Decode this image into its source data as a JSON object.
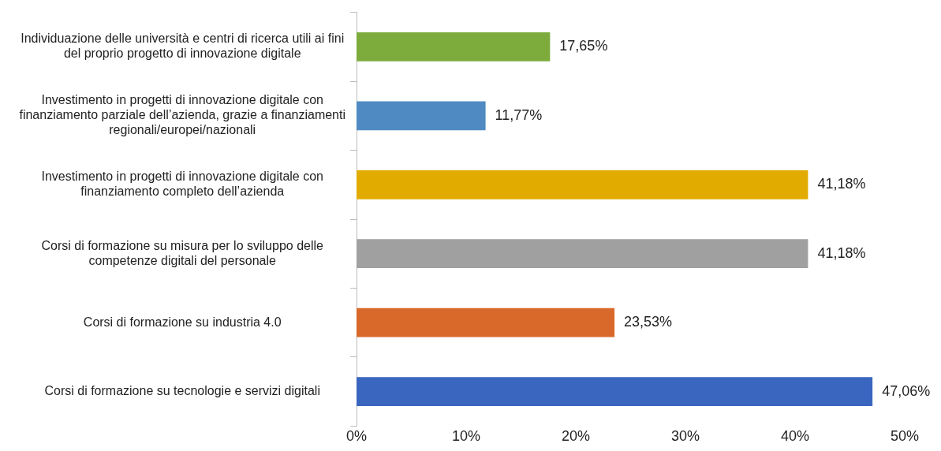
{
  "chart_data": {
    "type": "bar",
    "orientation": "horizontal",
    "categories": [
      "Individuazione delle università e centri di ricerca utili ai fini del proprio progetto di innovazione digitale",
      "Investimento in progetti di innovazione digitale con finanziamento parziale dell’azienda, grazie a finanziamenti regionali/europei/nazionali",
      "Investimento in progetti di innovazione digitale con finanziamento completo dell’azienda",
      "Corsi di formazione su misura per lo sviluppo delle competenze digitali del personale",
      "Corsi di formazione su industria 4.0",
      "Corsi di formazione su tecnologie e servizi digitali"
    ],
    "values": [
      17.65,
      11.77,
      41.18,
      41.18,
      23.53,
      47.06
    ],
    "colors": [
      "#7dab3c",
      "#4f8bc2",
      "#e2ab00",
      "#a0a0a0",
      "#d9692a",
      "#3a66bf"
    ],
    "value_labels": [
      "17,65%",
      "11,77%",
      "41,18%",
      "41,18%",
      "23,53%",
      "47,06%"
    ],
    "xlim": [
      0,
      50
    ],
    "xticks": [
      {
        "value": 0,
        "label": "0%"
      },
      {
        "value": 10,
        "label": "10%"
      },
      {
        "value": 20,
        "label": "20%"
      },
      {
        "value": 30,
        "label": "30%"
      },
      {
        "value": 40,
        "label": "40%"
      },
      {
        "value": 50,
        "label": "50%"
      }
    ],
    "grid": false,
    "legend": false
  }
}
